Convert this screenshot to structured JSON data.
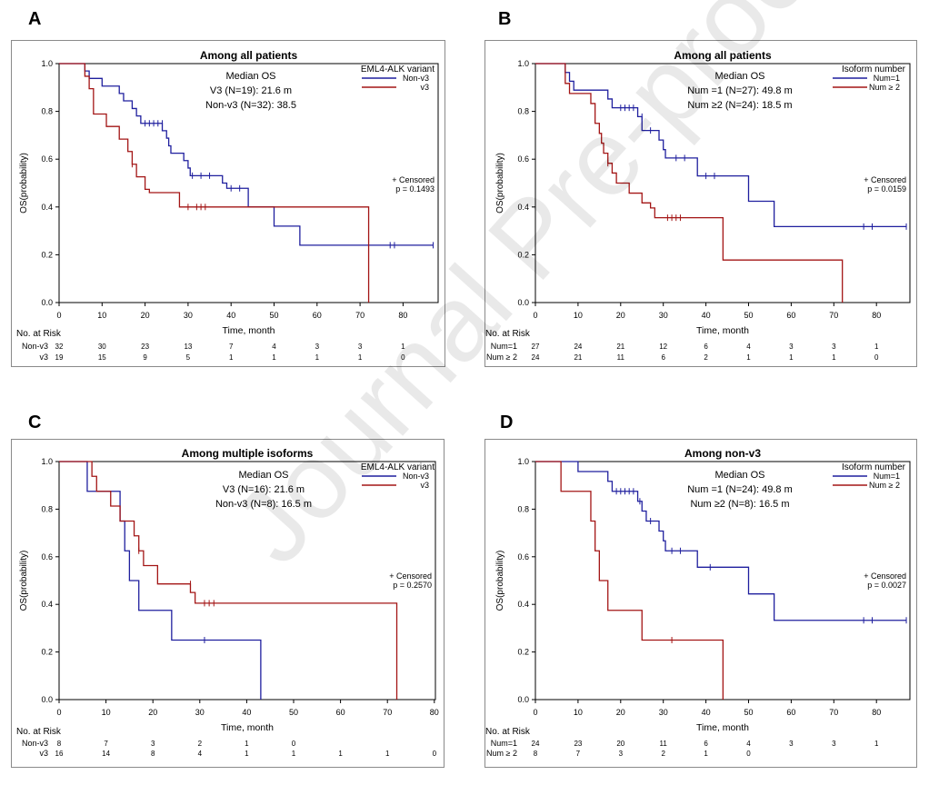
{
  "watermark": "Journal Pre-proof",
  "colors": {
    "blue": "#1f1f9e",
    "red": "#a31515",
    "axis": "#000000",
    "frame": "#8a8a8a"
  },
  "chart_data": [
    {
      "panel": "A",
      "type": "line",
      "subtype": "kaplan-meier",
      "title": "Among all patients",
      "xlabel": "Time, month",
      "ylabel": "OS(probability)",
      "xlim": [
        0,
        86
      ],
      "ylim": [
        0,
        1
      ],
      "xticks": [
        "0",
        "10",
        "20",
        "30",
        "40",
        "50",
        "60",
        "70",
        "80"
      ],
      "yticks": [
        "0.0",
        "0.2",
        "0.4",
        "0.6",
        "0.8",
        "1.0"
      ],
      "median_heading": "Median OS",
      "median_lines": [
        "V3 (N=19): 21.6 m",
        "Non-v3 (N=32): 38.5"
      ],
      "legend_title": "EML4-ALK variant",
      "legend_labels": [
        "Non-v3",
        "v3"
      ],
      "censored_label": "+ Censored",
      "p_value": "p = 0.1493",
      "risk_title": "No. at Risk",
      "risk_rows": [
        {
          "label": "Non-v3",
          "counts": [
            "32",
            "30",
            "23",
            "13",
            "7",
            "4",
            "3",
            "3",
            "1"
          ]
        },
        {
          "label": "v3",
          "counts": [
            "19",
            "15",
            "9",
            "5",
            "1",
            "1",
            "1",
            "1",
            "0"
          ]
        }
      ],
      "series": [
        {
          "name": "Non-v3",
          "color": "blue",
          "steps": [
            [
              0,
              1.0
            ],
            [
              6,
              0.969
            ],
            [
              7,
              0.938
            ],
            [
              10,
              0.906
            ],
            [
              14,
              0.875
            ],
            [
              15,
              0.844
            ],
            [
              17,
              0.812
            ],
            [
              18,
              0.781
            ],
            [
              19,
              0.75
            ],
            [
              24,
              0.719
            ],
            [
              25,
              0.688
            ],
            [
              25.5,
              0.656
            ],
            [
              26,
              0.625
            ],
            [
              29,
              0.594
            ],
            [
              30,
              0.563
            ],
            [
              30.5,
              0.531
            ],
            [
              38,
              0.5
            ],
            [
              39,
              0.478
            ],
            [
              44,
              0.4
            ],
            [
              50,
              0.32
            ],
            [
              56,
              0.24
            ],
            [
              87,
              0.24
            ]
          ],
          "censor": [
            [
              20,
              0.75
            ],
            [
              21,
              0.75
            ],
            [
              22,
              0.75
            ],
            [
              23,
              0.75
            ],
            [
              24,
              0.75
            ],
            [
              31,
              0.531
            ],
            [
              33,
              0.531
            ],
            [
              35,
              0.531
            ],
            [
              40,
              0.478
            ],
            [
              42,
              0.478
            ],
            [
              77,
              0.24
            ],
            [
              78,
              0.24
            ],
            [
              87,
              0.24
            ]
          ]
        },
        {
          "name": "v3",
          "color": "red",
          "steps": [
            [
              0,
              1.0
            ],
            [
              6,
              0.947
            ],
            [
              7,
              0.895
            ],
            [
              8,
              0.789
            ],
            [
              11,
              0.737
            ],
            [
              14,
              0.684
            ],
            [
              16,
              0.632
            ],
            [
              17,
              0.579
            ],
            [
              18,
              0.526
            ],
            [
              20,
              0.474
            ],
            [
              21,
              0.46
            ],
            [
              28,
              0.4
            ],
            [
              72,
              0.4
            ],
            [
              72,
              0.0
            ]
          ],
          "censor": [
            [
              17,
              0.579
            ],
            [
              30,
              0.4
            ],
            [
              32,
              0.4
            ],
            [
              33,
              0.4
            ],
            [
              34,
              0.4
            ]
          ]
        }
      ]
    },
    {
      "panel": "B",
      "type": "line",
      "subtype": "kaplan-meier",
      "title": "Among all patients",
      "xlabel": "Time, month",
      "ylabel": "OS(probability)",
      "xlim": [
        0,
        86
      ],
      "ylim": [
        0,
        1
      ],
      "xticks": [
        "0",
        "10",
        "20",
        "30",
        "40",
        "50",
        "60",
        "70",
        "80"
      ],
      "yticks": [
        "0.0",
        "0.2",
        "0.4",
        "0.6",
        "0.8",
        "1.0"
      ],
      "median_heading": "Median OS",
      "median_lines": [
        "Num =1 (N=27): 49.8 m",
        "Num ≥2 (N=24): 18.5 m"
      ],
      "legend_title": "Isoform number",
      "legend_labels": [
        "Num=1",
        "Num ≥ 2"
      ],
      "censored_label": "+ Censored",
      "p_value": "p = 0.0159",
      "risk_title": "No. at Risk",
      "risk_rows": [
        {
          "label": "Num=1",
          "counts": [
            "27",
            "24",
            "21",
            "12",
            "6",
            "4",
            "3",
            "3",
            "1"
          ]
        },
        {
          "label": "Num ≥ 2",
          "counts": [
            "24",
            "21",
            "11",
            "6",
            "2",
            "1",
            "1",
            "1",
            "0"
          ]
        }
      ],
      "series": [
        {
          "name": "Num=1",
          "color": "blue",
          "steps": [
            [
              0,
              1.0
            ],
            [
              7,
              0.963
            ],
            [
              8,
              0.926
            ],
            [
              9,
              0.889
            ],
            [
              17,
              0.852
            ],
            [
              18,
              0.815
            ],
            [
              24,
              0.778
            ],
            [
              25,
              0.72
            ],
            [
              29,
              0.68
            ],
            [
              30,
              0.64
            ],
            [
              30.5,
              0.605
            ],
            [
              38,
              0.53
            ],
            [
              50,
              0.424
            ],
            [
              56,
              0.318
            ],
            [
              87,
              0.318
            ]
          ],
          "censor": [
            [
              20,
              0.815
            ],
            [
              21,
              0.815
            ],
            [
              22,
              0.815
            ],
            [
              23,
              0.815
            ],
            [
              25,
              0.778
            ],
            [
              27,
              0.72
            ],
            [
              33,
              0.605
            ],
            [
              35,
              0.605
            ],
            [
              40,
              0.53
            ],
            [
              42,
              0.53
            ],
            [
              77,
              0.318
            ],
            [
              79,
              0.318
            ],
            [
              87,
              0.318
            ]
          ]
        },
        {
          "name": "Num ≥ 2",
          "color": "red",
          "steps": [
            [
              0,
              1.0
            ],
            [
              7,
              0.917
            ],
            [
              8,
              0.875
            ],
            [
              13,
              0.833
            ],
            [
              14,
              0.75
            ],
            [
              15,
              0.708
            ],
            [
              15.5,
              0.667
            ],
            [
              16,
              0.625
            ],
            [
              17,
              0.583
            ],
            [
              18,
              0.542
            ],
            [
              19,
              0.5
            ],
            [
              22,
              0.458
            ],
            [
              25,
              0.417
            ],
            [
              27,
              0.396
            ],
            [
              28,
              0.355
            ],
            [
              44,
              0.355
            ],
            [
              44,
              0.178
            ],
            [
              72,
              0.178
            ],
            [
              72,
              0.0
            ]
          ],
          "censor": [
            [
              17,
              0.583
            ],
            [
              31,
              0.355
            ],
            [
              32,
              0.355
            ],
            [
              33,
              0.355
            ],
            [
              34,
              0.355
            ]
          ]
        }
      ]
    },
    {
      "panel": "C",
      "type": "line",
      "subtype": "kaplan-meier",
      "title": "Among multiple isoforms",
      "xlabel": "Time, month",
      "ylabel": "OS(probability)",
      "xlim": [
        0,
        80
      ],
      "ylim": [
        0,
        1
      ],
      "xticks": [
        "0",
        "10",
        "20",
        "30",
        "40",
        "50",
        "60",
        "70",
        "80"
      ],
      "yticks": [
        "0.0",
        "0.2",
        "0.4",
        "0.6",
        "0.8",
        "1.0"
      ],
      "median_heading": "Median OS",
      "median_lines": [
        "V3 (N=16): 21.6 m",
        "Non-v3 (N=8): 16.5 m"
      ],
      "legend_title": "EML4-ALK variant",
      "legend_labels": [
        "Non-v3",
        "v3"
      ],
      "censored_label": "+ Censored",
      "p_value": "p = 0.2570",
      "risk_title": "No. at Risk",
      "risk_rows": [
        {
          "label": "Non-v3",
          "counts": [
            "8",
            "7",
            "3",
            "2",
            "1",
            "0",
            "",
            "",
            ""
          ]
        },
        {
          "label": "v3",
          "counts": [
            "16",
            "14",
            "8",
            "4",
            "1",
            "1",
            "1",
            "1",
            "0"
          ]
        }
      ],
      "series": [
        {
          "name": "Non-v3",
          "color": "blue",
          "steps": [
            [
              0,
              1.0
            ],
            [
              6,
              0.875
            ],
            [
              13,
              0.75
            ],
            [
              14,
              0.625
            ],
            [
              15,
              0.5
            ],
            [
              17,
              0.375
            ],
            [
              24,
              0.25
            ],
            [
              43,
              0.25
            ],
            [
              43,
              0.0
            ]
          ],
          "censor": [
            [
              31,
              0.25
            ]
          ]
        },
        {
          "name": "v3",
          "color": "red",
          "steps": [
            [
              0,
              1.0
            ],
            [
              7,
              0.938
            ],
            [
              8,
              0.875
            ],
            [
              11,
              0.813
            ],
            [
              13,
              0.75
            ],
            [
              16,
              0.688
            ],
            [
              17,
              0.625
            ],
            [
              18,
              0.563
            ],
            [
              21,
              0.486
            ],
            [
              28,
              0.45
            ],
            [
              29,
              0.405
            ],
            [
              72,
              0.405
            ],
            [
              72,
              0.0
            ]
          ],
          "censor": [
            [
              17,
              0.625
            ],
            [
              28,
              0.486
            ],
            [
              31,
              0.405
            ],
            [
              32,
              0.405
            ],
            [
              33,
              0.405
            ]
          ]
        }
      ]
    },
    {
      "panel": "D",
      "type": "line",
      "subtype": "kaplan-meier",
      "title": "Among non-v3",
      "xlabel": "Time, month",
      "ylabel": "OS(probability)",
      "xlim": [
        0,
        86
      ],
      "ylim": [
        0,
        1
      ],
      "xticks": [
        "0",
        "10",
        "20",
        "30",
        "40",
        "50",
        "60",
        "70",
        "80"
      ],
      "yticks": [
        "0.0",
        "0.2",
        "0.4",
        "0.6",
        "0.8",
        "1.0"
      ],
      "median_heading": "Median OS",
      "median_lines": [
        "Num =1 (N=24): 49.8 m",
        "Num ≥2 (N=8): 16.5 m"
      ],
      "legend_title": "Isoform number",
      "legend_labels": [
        "Num=1",
        "Num ≥ 2"
      ],
      "censored_label": "+ Censored",
      "p_value": "p = 0.0027",
      "risk_title": "No. at Risk",
      "risk_rows": [
        {
          "label": "Num=1",
          "counts": [
            "24",
            "23",
            "20",
            "11",
            "6",
            "4",
            "3",
            "3",
            "1"
          ]
        },
        {
          "label": "Num ≥ 2",
          "counts": [
            "8",
            "7",
            "3",
            "2",
            "1",
            "0",
            "",
            "",
            ""
          ]
        }
      ],
      "series": [
        {
          "name": "Num=1",
          "color": "blue",
          "steps": [
            [
              0,
              1.0
            ],
            [
              10,
              0.958
            ],
            [
              17,
              0.917
            ],
            [
              18,
              0.875
            ],
            [
              24,
              0.833
            ],
            [
              25,
              0.792
            ],
            [
              26,
              0.75
            ],
            [
              29,
              0.708
            ],
            [
              30,
              0.667
            ],
            [
              30.5,
              0.625
            ],
            [
              38,
              0.556
            ],
            [
              50,
              0.444
            ],
            [
              56,
              0.333
            ],
            [
              87,
              0.333
            ]
          ],
          "censor": [
            [
              19,
              0.875
            ],
            [
              20,
              0.875
            ],
            [
              21,
              0.875
            ],
            [
              22,
              0.875
            ],
            [
              23,
              0.875
            ],
            [
              24.5,
              0.833
            ],
            [
              27,
              0.75
            ],
            [
              32,
              0.625
            ],
            [
              34,
              0.625
            ],
            [
              41,
              0.556
            ],
            [
              77,
              0.333
            ],
            [
              79,
              0.333
            ],
            [
              87,
              0.333
            ]
          ]
        },
        {
          "name": "Num ≥ 2",
          "color": "red",
          "steps": [
            [
              0,
              1.0
            ],
            [
              6,
              0.875
            ],
            [
              13,
              0.75
            ],
            [
              14,
              0.625
            ],
            [
              15,
              0.5
            ],
            [
              17,
              0.375
            ],
            [
              25,
              0.25
            ],
            [
              44,
              0.25
            ],
            [
              44,
              0.0
            ]
          ],
          "censor": [
            [
              32,
              0.25
            ]
          ]
        }
      ]
    }
  ]
}
